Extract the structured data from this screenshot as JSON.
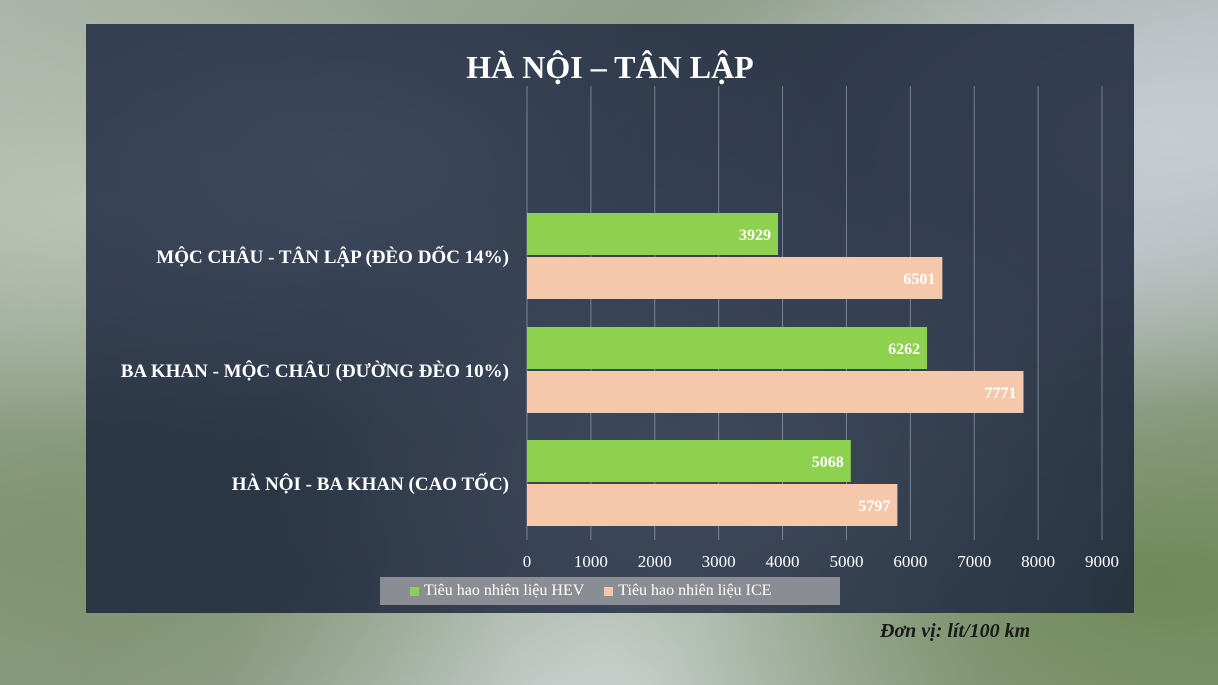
{
  "chart_data": {
    "type": "bar",
    "orientation": "horizontal",
    "title": "HÀ NỘI – TÂN LẬP",
    "categories": [
      "MỘC CHÂU - TÂN LẬP (ĐÈO DỐC 14%)",
      "BA KHAN - MỘC CHÂU (ĐƯỜNG ĐÈO 10%)",
      "HÀ NỘI - BA KHAN (CAO TỐC)"
    ],
    "series": [
      {
        "name": "Tiêu hao nhiên liệu HEV",
        "values": [
          3929,
          6262,
          5068
        ],
        "color": "#8ed14f"
      },
      {
        "name": "Tiêu hao nhiên liệu ICE",
        "values": [
          6501,
          7771,
          5797
        ],
        "color": "#f6c8ab"
      }
    ],
    "xlim": [
      0,
      9000
    ],
    "ticks": [
      0,
      1000,
      2000,
      3000,
      4000,
      5000,
      6000,
      7000,
      8000,
      9000
    ],
    "grid": true,
    "legend_position": "bottom",
    "label_color": "#ffffff"
  },
  "unit_note": "Đơn vị: lít/100 km"
}
